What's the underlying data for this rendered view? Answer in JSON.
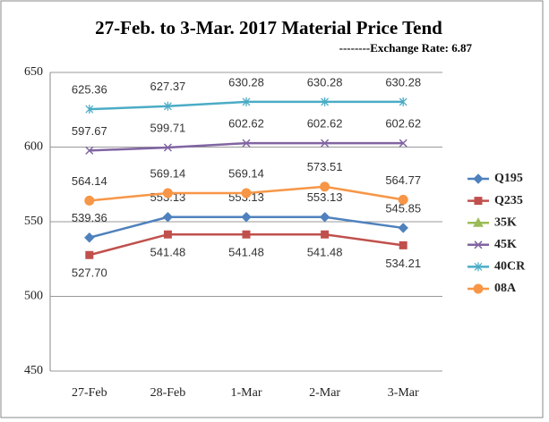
{
  "chart_data": {
    "type": "line",
    "title": "27-Feb. to 3-Mar. 2017 Material Price Tend",
    "subtitle": "--------Exchange Rate: 6.87",
    "categories": [
      "27-Feb",
      "28-Feb",
      "1-Mar",
      "2-Mar",
      "3-Mar"
    ],
    "series": [
      {
        "name": "Q195",
        "color": "#4f81bd",
        "values": [
          539.36,
          553.13,
          553.13,
          553.13,
          545.85
        ]
      },
      {
        "name": "Q235",
        "color": "#c0504d",
        "values": [
          527.7,
          541.48,
          541.48,
          541.48,
          534.21
        ],
        "value_labels": [
          "527.70",
          "541.48",
          "541.48",
          "541.48",
          "534.21"
        ]
      },
      {
        "name": "35K",
        "color": "#9bbb59",
        "values": [
          null,
          null,
          null,
          null,
          null
        ]
      },
      {
        "name": "45K",
        "color": "#8064a2",
        "values": [
          597.67,
          599.71,
          602.62,
          602.62,
          602.62
        ]
      },
      {
        "name": "40CR",
        "color": "#4bacc6",
        "values": [
          625.36,
          627.37,
          630.28,
          630.28,
          630.28
        ]
      },
      {
        "name": "08A",
        "color": "#f79646",
        "values": [
          564.14,
          569.14,
          569.14,
          573.51,
          564.77
        ]
      }
    ],
    "ylim": [
      450,
      650
    ],
    "yticks": [
      450,
      500,
      550,
      600,
      650
    ],
    "grid": true
  }
}
